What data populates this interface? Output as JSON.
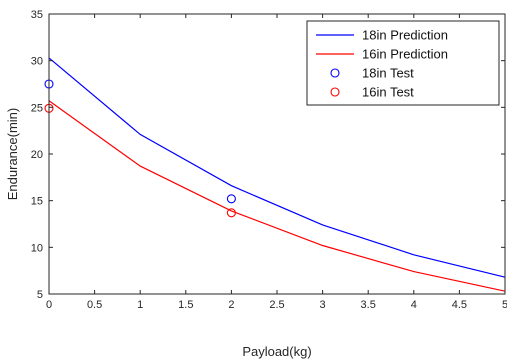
{
  "chart_data": {
    "type": "line",
    "xlabel": "Payload(kg)",
    "ylabel": "Endurance(min)",
    "xlim": [
      0,
      5
    ],
    "ylim": [
      5,
      35
    ],
    "xticks": [
      "0",
      "0.5",
      "1",
      "1.5",
      "2",
      "2.5",
      "3",
      "3.5",
      "4",
      "4.5",
      "5"
    ],
    "yticks": [
      "5",
      "10",
      "15",
      "20",
      "25",
      "30",
      "35"
    ],
    "grid": false,
    "legend_position": "top-right",
    "series": [
      {
        "name": "18in Prediction",
        "kind": "line",
        "color": "#0000ff",
        "x": [
          0,
          1,
          2,
          3,
          4,
          5
        ],
        "y": [
          30.3,
          22.1,
          16.6,
          12.4,
          9.2,
          6.8
        ]
      },
      {
        "name": "16in Prediction",
        "kind": "line",
        "color": "#ff0000",
        "x": [
          0,
          1,
          2,
          3,
          4,
          5
        ],
        "y": [
          25.7,
          18.7,
          13.9,
          10.2,
          7.4,
          5.3
        ]
      },
      {
        "name": "18in Test",
        "kind": "scatter",
        "marker": "circle-open",
        "color": "#0000ff",
        "x": [
          0,
          2
        ],
        "y": [
          27.5,
          15.2
        ]
      },
      {
        "name": "16in Test",
        "kind": "scatter",
        "marker": "circle-open",
        "color": "#ff0000",
        "x": [
          0,
          2
        ],
        "y": [
          24.9,
          13.7
        ]
      }
    ]
  }
}
